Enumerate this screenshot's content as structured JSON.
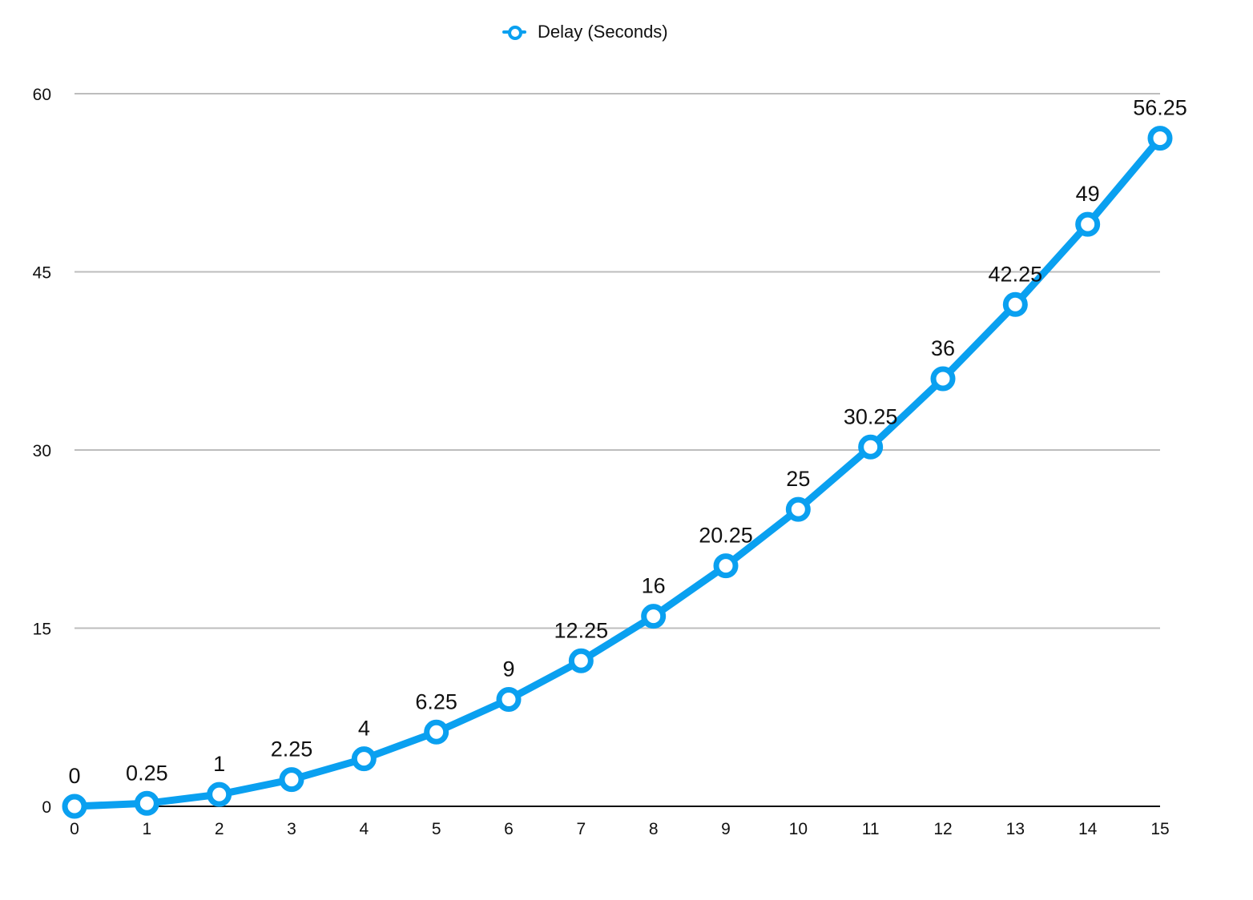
{
  "chart_data": {
    "type": "line",
    "title": "",
    "xlabel": "",
    "ylabel": "",
    "x": [
      0,
      1,
      2,
      3,
      4,
      5,
      6,
      7,
      8,
      9,
      10,
      11,
      12,
      13,
      14,
      15
    ],
    "series": [
      {
        "name": "Delay (Seconds)",
        "values": [
          0,
          0.25,
          1,
          2.25,
          4,
          6.25,
          9,
          12.25,
          16,
          20.25,
          25,
          30.25,
          36,
          42.25,
          49,
          56.25
        ],
        "labels": [
          "0",
          "0.25",
          "1",
          "2.25",
          "4",
          "6.25",
          "9",
          "12.25",
          "16",
          "20.25",
          "25",
          "30.25",
          "36",
          "42.25",
          "49",
          "56.25"
        ],
        "color": "#0aa0f0"
      }
    ],
    "xlim": [
      0,
      15
    ],
    "ylim": [
      0,
      60
    ],
    "x_ticks": [
      "0",
      "1",
      "2",
      "3",
      "4",
      "5",
      "6",
      "7",
      "8",
      "9",
      "10",
      "11",
      "12",
      "13",
      "14",
      "15"
    ],
    "y_ticks": [
      "0",
      "15",
      "30",
      "45",
      "60"
    ],
    "grid": true,
    "legend_position": "top-center"
  }
}
